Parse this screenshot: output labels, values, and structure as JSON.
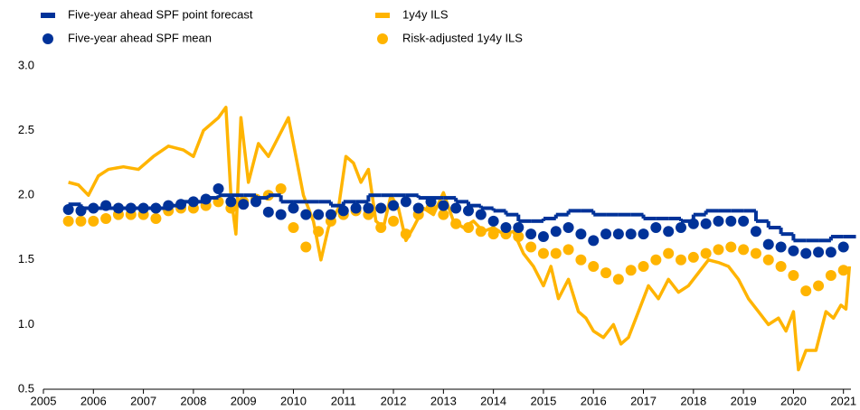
{
  "chart_data": {
    "type": "line",
    "x": [
      2005.5,
      2005.75,
      2006,
      2006.25,
      2006.5,
      2006.75,
      2007,
      2007.25,
      2007.5,
      2007.75,
      2008,
      2008.25,
      2008.5,
      2008.75,
      2009,
      2009.25,
      2009.5,
      2009.75,
      2010,
      2010.25,
      2010.5,
      2010.75,
      2011,
      2011.25,
      2011.5,
      2011.75,
      2012,
      2012.25,
      2012.5,
      2012.75,
      2013,
      2013.25,
      2013.5,
      2013.75,
      2014,
      2014.25,
      2014.5,
      2014.75,
      2015,
      2015.25,
      2015.5,
      2015.75,
      2016,
      2016.25,
      2016.5,
      2016.75,
      2017,
      2017.25,
      2017.5,
      2017.75,
      2018,
      2018.25,
      2018.5,
      2018.75,
      2019,
      2019.25,
      2019.5,
      2019.75,
      2020,
      2020.25,
      2020.5,
      2020.75,
      2021
    ],
    "series": [
      {
        "name": "Five-year ahead SPF point forecast",
        "color": "#003299",
        "style": "step",
        "values": [
          1.93,
          1.9,
          1.9,
          1.9,
          1.9,
          1.9,
          1.9,
          1.9,
          1.92,
          1.95,
          1.95,
          1.98,
          2.0,
          2.0,
          2.0,
          1.98,
          2.0,
          1.95,
          1.95,
          1.95,
          1.95,
          1.92,
          1.95,
          1.95,
          2.0,
          2.0,
          2.0,
          2.0,
          1.98,
          1.98,
          1.98,
          1.95,
          1.92,
          1.9,
          1.88,
          1.85,
          1.8,
          1.8,
          1.82,
          1.85,
          1.88,
          1.88,
          1.85,
          1.85,
          1.85,
          1.85,
          1.82,
          1.82,
          1.82,
          1.8,
          1.85,
          1.88,
          1.88,
          1.88,
          1.88,
          1.8,
          1.75,
          1.7,
          1.65,
          1.65,
          1.65,
          1.68,
          1.68
        ]
      },
      {
        "name": "Five-year ahead SPF mean",
        "color": "#003299",
        "style": "dots",
        "values": [
          1.89,
          1.88,
          1.9,
          1.92,
          1.9,
          1.9,
          1.9,
          1.9,
          1.92,
          1.93,
          1.95,
          1.97,
          2.05,
          1.95,
          1.93,
          1.95,
          1.87,
          1.85,
          1.9,
          1.85,
          1.85,
          1.85,
          1.88,
          1.9,
          1.9,
          1.9,
          1.92,
          1.95,
          1.9,
          1.95,
          1.92,
          1.9,
          1.88,
          1.85,
          1.8,
          1.75,
          1.75,
          1.7,
          1.68,
          1.72,
          1.75,
          1.7,
          1.65,
          1.7,
          1.7,
          1.7,
          1.7,
          1.75,
          1.72,
          1.75,
          1.78,
          1.78,
          1.8,
          1.8,
          1.8,
          1.72,
          1.62,
          1.6,
          1.57,
          1.55,
          1.56,
          1.56,
          1.6
        ]
      },
      {
        "name": "1y4y ILS",
        "color": "#ffb400",
        "style": "line",
        "x": [
          2005.5,
          2005.7,
          2005.9,
          2006.1,
          2006.3,
          2006.6,
          2006.9,
          2007.2,
          2007.5,
          2007.8,
          2008.0,
          2008.2,
          2008.5,
          2008.65,
          2008.75,
          2008.85,
          2008.95,
          2009.1,
          2009.3,
          2009.5,
          2009.7,
          2009.9,
          2010.05,
          2010.2,
          2010.4,
          2010.55,
          2010.7,
          2010.9,
          2011.05,
          2011.2,
          2011.35,
          2011.5,
          2011.65,
          2011.8,
          2011.95,
          2012.1,
          2012.25,
          2012.4,
          2012.6,
          2012.8,
          2013.0,
          2013.2,
          2013.4,
          2013.6,
          2013.8,
          2014.0,
          2014.2,
          2014.4,
          2014.6,
          2014.8,
          2015.0,
          2015.15,
          2015.3,
          2015.5,
          2015.7,
          2015.85,
          2016.0,
          2016.2,
          2016.4,
          2016.55,
          2016.7,
          2016.9,
          2017.1,
          2017.3,
          2017.5,
          2017.7,
          2017.9,
          2018.1,
          2018.3,
          2018.5,
          2018.7,
          2018.9,
          2019.1,
          2019.3,
          2019.5,
          2019.7,
          2019.85,
          2020.0,
          2020.1,
          2020.25,
          2020.45,
          2020.65,
          2020.8,
          2020.95,
          2021.05,
          2021.12
        ],
        "values": [
          2.1,
          2.08,
          2.0,
          2.15,
          2.2,
          2.22,
          2.2,
          2.3,
          2.38,
          2.35,
          2.3,
          2.5,
          2.6,
          2.68,
          2.0,
          1.7,
          2.6,
          2.1,
          2.4,
          2.3,
          2.45,
          2.6,
          2.3,
          2.0,
          1.8,
          1.5,
          1.75,
          1.9,
          2.3,
          2.25,
          2.1,
          2.2,
          1.8,
          1.75,
          2.0,
          1.9,
          1.65,
          1.75,
          1.9,
          1.85,
          2.02,
          1.8,
          1.75,
          1.8,
          1.72,
          1.75,
          1.7,
          1.72,
          1.55,
          1.45,
          1.3,
          1.45,
          1.2,
          1.35,
          1.1,
          1.05,
          0.95,
          0.9,
          1.0,
          0.85,
          0.9,
          1.1,
          1.3,
          1.2,
          1.35,
          1.25,
          1.3,
          1.4,
          1.5,
          1.48,
          1.45,
          1.35,
          1.2,
          1.1,
          1.0,
          1.05,
          0.95,
          1.1,
          0.65,
          0.8,
          0.8,
          1.1,
          1.05,
          1.15,
          1.12,
          1.45
        ]
      },
      {
        "name": "Risk-adjusted 1y4y ILS",
        "color": "#ffb400",
        "style": "dots",
        "values": [
          1.8,
          1.8,
          1.8,
          1.82,
          1.85,
          1.85,
          1.85,
          1.82,
          1.88,
          1.9,
          1.9,
          1.92,
          1.95,
          1.9,
          1.95,
          1.97,
          2.0,
          2.05,
          1.75,
          1.6,
          1.72,
          1.8,
          1.85,
          1.88,
          1.85,
          1.75,
          1.8,
          1.7,
          1.85,
          1.9,
          1.85,
          1.78,
          1.75,
          1.72,
          1.7,
          1.7,
          1.68,
          1.6,
          1.55,
          1.55,
          1.58,
          1.5,
          1.45,
          1.4,
          1.35,
          1.42,
          1.45,
          1.5,
          1.55,
          1.5,
          1.52,
          1.55,
          1.58,
          1.6,
          1.58,
          1.55,
          1.5,
          1.45,
          1.38,
          1.26,
          1.3,
          1.38,
          1.42
        ]
      }
    ],
    "xlim": [
      2005,
      2021.15
    ],
    "xticks": [
      2005,
      2006,
      2007,
      2008,
      2009,
      2010,
      2011,
      2012,
      2013,
      2014,
      2015,
      2016,
      2017,
      2018,
      2019,
      2020,
      2021
    ],
    "ylim": [
      0.5,
      3.0
    ],
    "yticks": [
      {
        "value": 0.5,
        "label": "0.5"
      },
      {
        "value": 1.0,
        "label": "1.0"
      },
      1.5,
      {
        "value": 2.0,
        "label": "2.0"
      },
      2.5,
      {
        "value": 3.0,
        "label": "3.0"
      }
    ],
    "grid": false,
    "legend": "top"
  }
}
